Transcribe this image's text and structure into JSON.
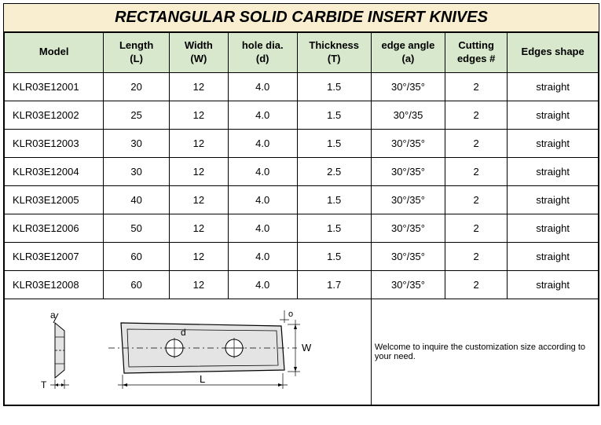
{
  "title": "RECTANGULAR SOLID CARBIDE INSERT KNIVES",
  "colors": {
    "title_bg": "#f9eecf",
    "header_bg": "#d8e8cc",
    "border": "#000000",
    "shape_fill": "#e4e4e4"
  },
  "table": {
    "columns": [
      {
        "label": "Model",
        "width": 118
      },
      {
        "label": "Length\n(L)",
        "width": 78
      },
      {
        "label": "Width\n(W)",
        "width": 70
      },
      {
        "label": "hole dia.\n(d)",
        "width": 82
      },
      {
        "label": "Thickness\n(T)",
        "width": 88
      },
      {
        "label": "edge angle\n(a)",
        "width": 88
      },
      {
        "label": "Cutting\nedges #",
        "width": 74
      },
      {
        "label": "Edges shape",
        "width": 108
      }
    ],
    "rows": [
      [
        "KLR03E12001",
        "20",
        "12",
        "4.0",
        "1.5",
        "30°/35°",
        "2",
        "straight"
      ],
      [
        "KLR03E12002",
        "25",
        "12",
        "4.0",
        "1.5",
        "30°/35",
        "2",
        "straight"
      ],
      [
        "KLR03E12003",
        "30",
        "12",
        "4.0",
        "1.5",
        "30°/35°",
        "2",
        "straight"
      ],
      [
        "KLR03E12004",
        "30",
        "12",
        "4.0",
        "2.5",
        "30°/35°",
        "2",
        "straight"
      ],
      [
        "KLR03E12005",
        "40",
        "12",
        "4.0",
        "1.5",
        "30°/35°",
        "2",
        "straight"
      ],
      [
        "KLR03E12006",
        "50",
        "12",
        "4.0",
        "1.5",
        "30°/35°",
        "2",
        "straight"
      ],
      [
        "KLR03E12007",
        "60",
        "12",
        "4.0",
        "1.5",
        "30°/35°",
        "2",
        "straight"
      ],
      [
        "KLR03E12008",
        "60",
        "12",
        "4.0",
        "1.7",
        "30°/35°",
        "2",
        "straight"
      ]
    ]
  },
  "diagram": {
    "labels": {
      "a": "a",
      "T": "T",
      "d": "d",
      "o": "o",
      "W": "W",
      "L": "L"
    }
  },
  "footer": "Welcome to inquire the customization size according to your need."
}
